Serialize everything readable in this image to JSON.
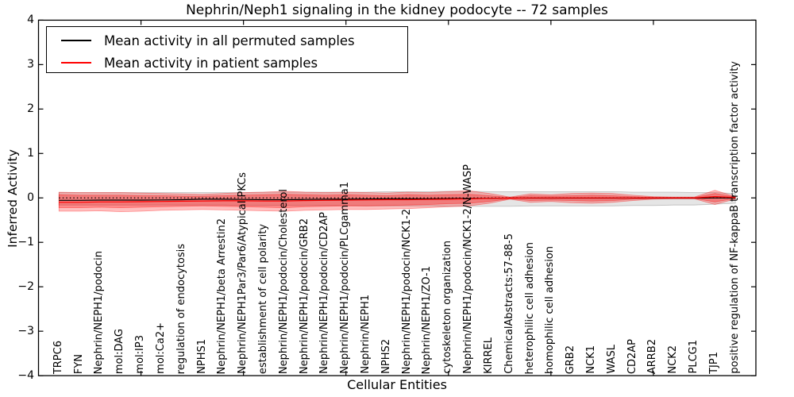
{
  "chart_data": {
    "type": "line",
    "title": "Nephrin/Neph1 signaling in the kidney podocyte -- 72 samples",
    "xlabel": "Cellular Entities",
    "ylabel": "Inferred Activity",
    "xlim": [
      0,
      35
    ],
    "ylim": [
      -4,
      4
    ],
    "yticks": [
      4,
      3,
      2,
      1,
      0,
      -1,
      -2,
      -3,
      -4
    ],
    "ytick_labels": [
      "4",
      "3",
      "2",
      "1",
      "0",
      "−1",
      "−2",
      "−3",
      "−4"
    ],
    "xtick_positions": [
      5,
      10,
      15,
      20,
      25,
      30
    ],
    "grid": false,
    "legend_position": "upper left",
    "categories": [
      "TRPC6",
      "FYN",
      "Nephrin/NEPH1/podocin",
      "mol:DAG",
      "mol:IP3",
      "mol:Ca2+",
      "regulation of endocytosis",
      "NPHS1",
      "Nephrin/NEPH1/beta Arrestin2",
      "Nephrin/NEPH1Par3/Par6/Atypical PKCs",
      "establishment of cell polarity",
      "Nephrin/NEPH1/podocin/Cholesterol",
      "Nephrin/NEPH1/podocin/GRB2",
      "Nephrin/NEPH1/podocin/CD2AP",
      "Nephrin/NEPH1/podocin/PLCgamma1",
      "Nephrin/NEPH1",
      "NPHS2",
      "Nephrin/NEPH1/podocin/NCK1-2",
      "Nephrin/NEPH1/ZO-1",
      "cytoskeleton organization",
      "Nephrin/NEPH1/podocin/NCK1-2/N-WASP",
      "KIRREL",
      "ChemicalAbstracts:57-88-5",
      "heterophilic cell adhesion",
      "homophilic cell adhesion",
      "GRB2",
      "NCK1",
      "WASL",
      "CD2AP",
      "ARRB2",
      "NCK2",
      "PLCG1",
      "TJP1",
      "positive regulation of NF-kappaB transcription factor activity"
    ],
    "series": [
      {
        "name": "Mean activity in all permuted samples",
        "color": "#000000",
        "values": [
          -0.055,
          -0.055,
          -0.05,
          -0.05,
          -0.05,
          -0.045,
          -0.04,
          -0.03,
          -0.03,
          -0.035,
          -0.04,
          -0.04,
          -0.035,
          -0.03,
          -0.03,
          -0.025,
          -0.02,
          -0.02,
          -0.02,
          -0.015,
          -0.01,
          -0.01,
          -0.005,
          -0.005,
          -0.005,
          -0.005,
          -0.005,
          -0.005,
          -0.005,
          -0.005,
          -0.005,
          -0.005,
          0.0,
          0.0
        ]
      },
      {
        "name": "Mean activity in patient samples",
        "color": "#ff0000",
        "values": [
          -0.1,
          -0.1,
          -0.09,
          -0.09,
          -0.085,
          -0.08,
          -0.075,
          -0.07,
          -0.065,
          -0.065,
          -0.07,
          -0.07,
          -0.06,
          -0.055,
          -0.05,
          -0.045,
          -0.04,
          -0.04,
          -0.035,
          -0.03,
          -0.02,
          -0.01,
          -0.005,
          0.0,
          0.0,
          0.0,
          0.0,
          0.0,
          0.0,
          0.0,
          0.0,
          0.0,
          0.03,
          0.01
        ]
      }
    ],
    "bands": [
      {
        "name": "permuted-samples-range",
        "color": "#000000",
        "opacity": 0.1,
        "upper": [
          0.12,
          0.12,
          0.12,
          0.12,
          0.12,
          0.12,
          0.12,
          0.12,
          0.12,
          0.12,
          0.13,
          0.13,
          0.13,
          0.13,
          0.13,
          0.13,
          0.14,
          0.14,
          0.14,
          0.15,
          0.15,
          0.14,
          0.14,
          0.14,
          0.14,
          0.14,
          0.14,
          0.14,
          0.13,
          0.13,
          0.13,
          0.12,
          0.12,
          0.1
        ],
        "lower": [
          -0.16,
          -0.16,
          -0.16,
          -0.16,
          -0.16,
          -0.16,
          -0.16,
          -0.16,
          -0.16,
          -0.17,
          -0.17,
          -0.17,
          -0.17,
          -0.17,
          -0.17,
          -0.18,
          -0.18,
          -0.18,
          -0.18,
          -0.19,
          -0.19,
          -0.19,
          -0.19,
          -0.18,
          -0.18,
          -0.18,
          -0.18,
          -0.18,
          -0.17,
          -0.17,
          -0.16,
          -0.16,
          -0.14,
          -0.12
        ]
      },
      {
        "name": "patient-samples-range-outer",
        "color": "#ff0000",
        "opacity": 0.25,
        "upper": [
          0.13,
          0.12,
          0.12,
          0.12,
          0.11,
          0.1,
          0.09,
          0.08,
          0.1,
          0.12,
          0.13,
          0.15,
          0.13,
          0.12,
          0.13,
          0.12,
          0.11,
          0.13,
          0.12,
          0.14,
          0.16,
          0.1,
          0.02,
          0.09,
          0.07,
          0.1,
          0.11,
          0.1,
          0.06,
          0.03,
          0.02,
          0.02,
          0.17,
          0.03
        ],
        "lower": [
          -0.3,
          -0.3,
          -0.29,
          -0.31,
          -0.3,
          -0.28,
          -0.27,
          -0.26,
          -0.27,
          -0.28,
          -0.29,
          -0.3,
          -0.28,
          -0.27,
          -0.26,
          -0.26,
          -0.25,
          -0.24,
          -0.22,
          -0.2,
          -0.18,
          -0.12,
          -0.03,
          -0.1,
          -0.08,
          -0.11,
          -0.12,
          -0.1,
          -0.06,
          -0.03,
          -0.02,
          -0.02,
          -0.15,
          -0.02
        ]
      },
      {
        "name": "patient-samples-range-inner",
        "color": "#ff0000",
        "opacity": 0.28,
        "upper": [
          0.07,
          0.06,
          0.06,
          0.06,
          0.05,
          0.05,
          0.04,
          0.04,
          0.05,
          0.06,
          0.07,
          0.08,
          0.07,
          0.06,
          0.07,
          0.06,
          0.05,
          0.07,
          0.06,
          0.07,
          0.08,
          0.05,
          0.01,
          0.05,
          0.04,
          0.05,
          0.06,
          0.05,
          0.03,
          0.015,
          0.01,
          0.01,
          0.1,
          0.02
        ],
        "lower": [
          -0.22,
          -0.22,
          -0.21,
          -0.22,
          -0.21,
          -0.2,
          -0.19,
          -0.18,
          -0.19,
          -0.2,
          -0.21,
          -0.22,
          -0.2,
          -0.19,
          -0.18,
          -0.18,
          -0.17,
          -0.16,
          -0.15,
          -0.13,
          -0.12,
          -0.08,
          -0.02,
          -0.06,
          -0.05,
          -0.06,
          -0.07,
          -0.06,
          -0.03,
          -0.015,
          -0.01,
          -0.01,
          -0.09,
          -0.01
        ]
      }
    ],
    "zero_line": {
      "y": 0,
      "style": "dotted",
      "color": "#000000"
    }
  }
}
